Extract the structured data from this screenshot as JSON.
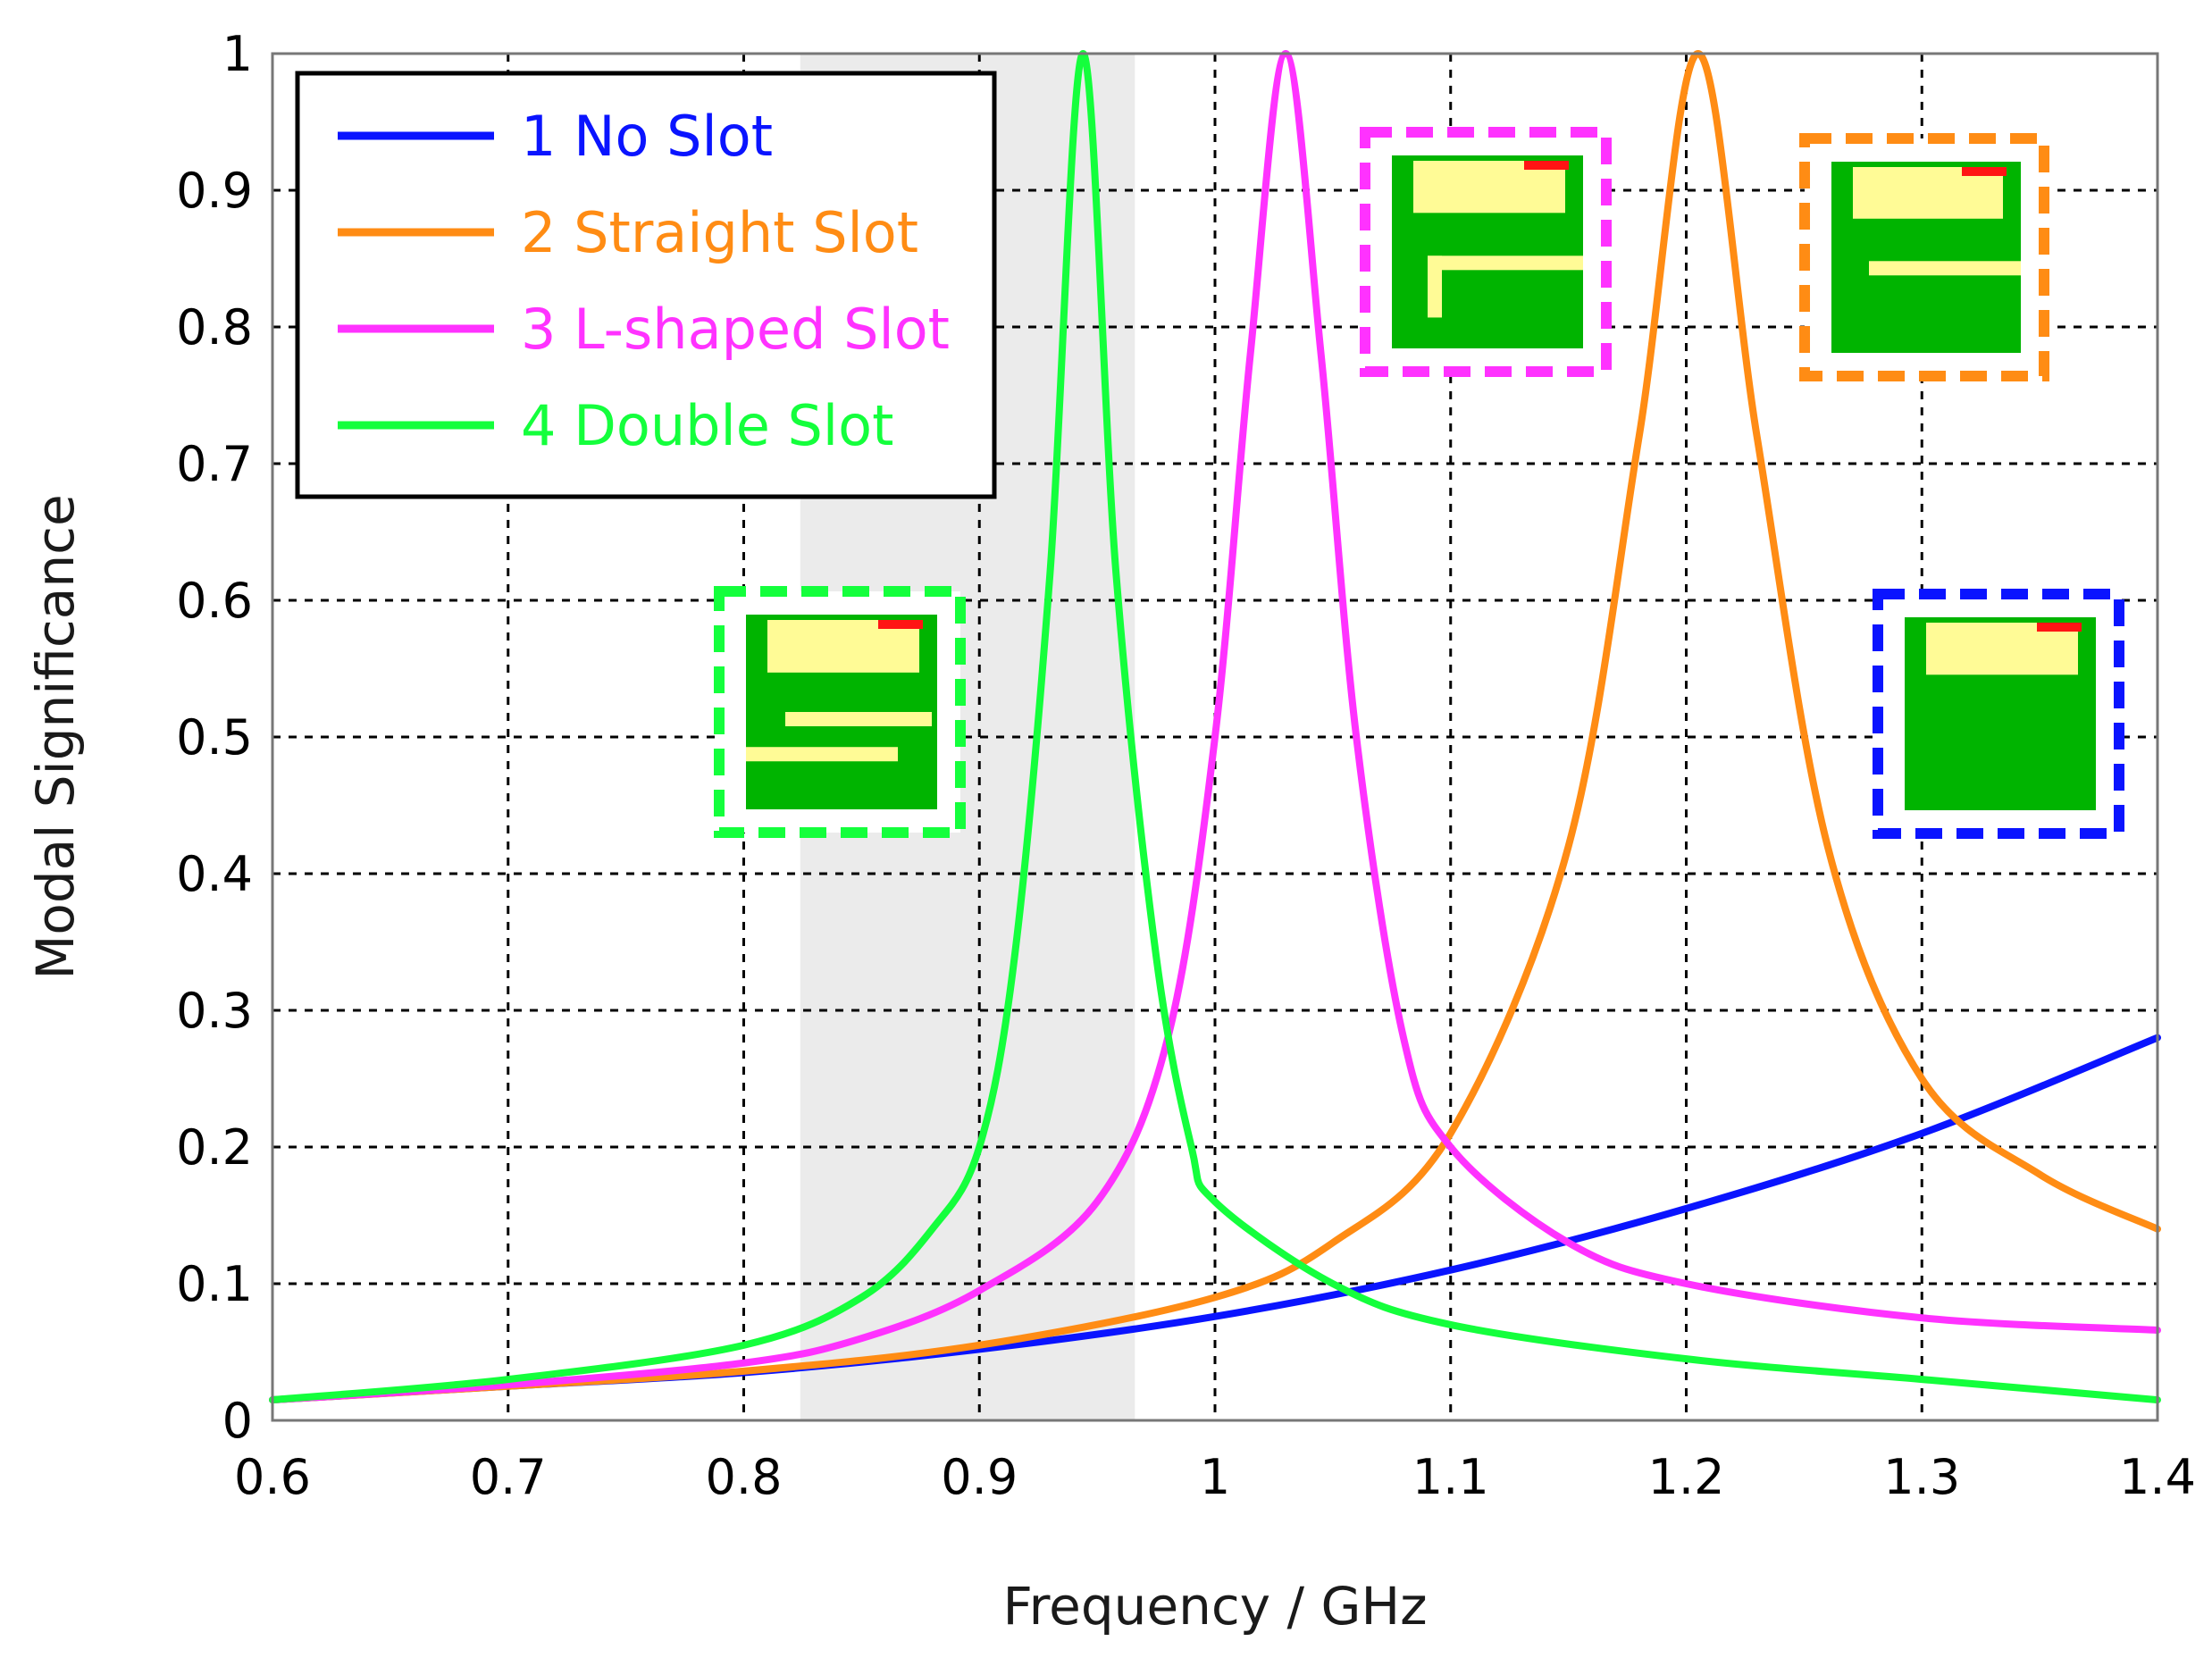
{
  "chart_data": {
    "type": "line",
    "title": "",
    "xlabel": "Frequency / GHz",
    "ylabel": "Modal Significance",
    "xlim": [
      0.6,
      1.4
    ],
    "ylim": [
      0,
      1
    ],
    "xticks": [
      "0.6",
      "0.7",
      "0.8",
      "0.9",
      "1",
      "1.1",
      "1.2",
      "1.3",
      "1.4"
    ],
    "yticks": [
      "0",
      "0.1",
      "0.2",
      "0.3",
      "0.4",
      "0.5",
      "0.6",
      "0.7",
      "0.8",
      "0.9",
      "1"
    ],
    "grid": true,
    "legend_position": "top-left",
    "shaded_band": [
      0.824,
      0.966
    ],
    "shaded_color": "#ebebeb",
    "series": [
      {
        "name": "1 No Slot",
        "color": "#0a14ff",
        "x": [
          0.6,
          0.7,
          0.8,
          0.9,
          1.0,
          1.1,
          1.2,
          1.3,
          1.4
        ],
        "y": [
          0.015,
          0.025,
          0.035,
          0.052,
          0.076,
          0.11,
          0.155,
          0.21,
          0.28
        ]
      },
      {
        "name": "2 Straight Slot",
        "color": "#ff8c14",
        "x": [
          0.6,
          0.7,
          0.8,
          0.9,
          1.0,
          1.05,
          1.1,
          1.15,
          1.18,
          1.205,
          1.23,
          1.26,
          1.3,
          1.35,
          1.4
        ],
        "y": [
          0.015,
          0.025,
          0.036,
          0.055,
          0.09,
          0.13,
          0.21,
          0.42,
          0.72,
          1.0,
          0.72,
          0.42,
          0.25,
          0.18,
          0.14
        ]
      },
      {
        "name": "3 L-shaped Slot",
        "color": "#ff32ff",
        "x": [
          0.6,
          0.7,
          0.8,
          0.85,
          0.9,
          0.95,
          0.98,
          1.0,
          1.015,
          1.03,
          1.045,
          1.06,
          1.08,
          1.1,
          1.15,
          1.2,
          1.3,
          1.4
        ],
        "y": [
          0.015,
          0.026,
          0.042,
          0.06,
          0.095,
          0.16,
          0.28,
          0.5,
          0.78,
          1.0,
          0.78,
          0.5,
          0.28,
          0.2,
          0.13,
          0.1,
          0.075,
          0.066
        ]
      },
      {
        "name": "4 Double Slot",
        "color": "#14ff3c",
        "x": [
          0.6,
          0.7,
          0.8,
          0.85,
          0.88,
          0.9,
          0.915,
          0.93,
          0.944,
          0.958,
          0.975,
          0.99,
          1.0,
          1.05,
          1.1,
          1.2,
          1.3,
          1.4
        ],
        "y": [
          0.015,
          0.03,
          0.055,
          0.09,
          0.14,
          0.2,
          0.34,
          0.62,
          1.0,
          0.62,
          0.34,
          0.2,
          0.16,
          0.1,
          0.07,
          0.045,
          0.03,
          0.015
        ]
      }
    ]
  },
  "insets": [
    {
      "name": "double-slot-antenna-inset",
      "frame_color": "#14ff3c",
      "slots": "double"
    },
    {
      "name": "l-shaped-slot-antenna-inset",
      "frame_color": "#ff32ff",
      "slots": "l-shaped"
    },
    {
      "name": "straight-slot-antenna-inset",
      "frame_color": "#ff8c14",
      "slots": "straight"
    },
    {
      "name": "no-slot-antenna-inset",
      "frame_color": "#0a14ff",
      "slots": "none"
    }
  ]
}
